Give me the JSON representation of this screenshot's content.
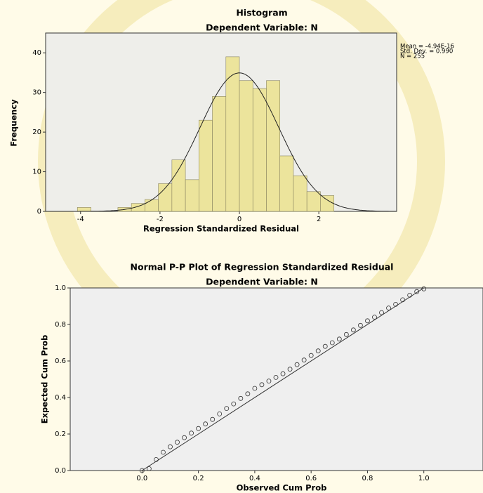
{
  "chart_data": [
    {
      "type": "histogram",
      "title": "Histogram",
      "subtitle": "Dependent Variable: N",
      "x_label": "Regression Standardized Residual",
      "y_label": "Frequency",
      "bins": [
        -4.08,
        -3.74,
        -3.4,
        -3.06,
        -2.72,
        -2.38,
        -2.04,
        -1.7,
        -1.36,
        -1.02,
        -0.68,
        -0.34,
        0,
        0.34,
        0.68,
        1.02,
        1.36,
        1.7,
        2.04,
        2.38
      ],
      "values": [
        1,
        0,
        0,
        1,
        2,
        3,
        7,
        13,
        8,
        23,
        29,
        39,
        33,
        31,
        33,
        14,
        9,
        5,
        4
      ],
      "color": "#ece49c",
      "xlim": [
        -4.88,
        3.96
      ],
      "xticks": [
        -4,
        -2,
        0,
        2
      ],
      "ylim": [
        0,
        45
      ],
      "yticks": [
        0,
        10,
        20,
        30,
        40
      ],
      "stats": {
        "mean": {
          "value": -4.94e-16,
          "label": "Mean = -4.94E-16"
        },
        "std_dev": {
          "value": 0.99,
          "label": "Std. Dev. = 0.990"
        },
        "n": {
          "value": 255,
          "label": "N = 255"
        }
      }
    },
    {
      "type": "scatter",
      "title": "Normal P-P Plot of Regression Standardized Residual",
      "subtitle": "Dependent Variable: N",
      "x_label": "Observed Cum Prob",
      "y_label": "Expected Cum Prob",
      "x": [
        0,
        0.025,
        0.05,
        0.075,
        0.1,
        0.125,
        0.15,
        0.175,
        0.2,
        0.225,
        0.25,
        0.275,
        0.3,
        0.325,
        0.35,
        0.375,
        0.4,
        0.425,
        0.45,
        0.475,
        0.5,
        0.525,
        0.55,
        0.575,
        0.6,
        0.625,
        0.65,
        0.675,
        0.7,
        0.725,
        0.75,
        0.775,
        0.8,
        0.825,
        0.85,
        0.875,
        0.9,
        0.925,
        0.95,
        0.975,
        1.0
      ],
      "values": [
        0,
        0.01,
        0.06,
        0.1,
        0.13,
        0.155,
        0.18,
        0.205,
        0.23,
        0.255,
        0.28,
        0.31,
        0.34,
        0.365,
        0.395,
        0.42,
        0.45,
        0.47,
        0.49,
        0.51,
        0.53,
        0.555,
        0.58,
        0.605,
        0.63,
        0.655,
        0.68,
        0.7,
        0.72,
        0.745,
        0.77,
        0.795,
        0.82,
        0.84,
        0.865,
        0.89,
        0.91,
        0.935,
        0.96,
        0.98,
        0.995
      ],
      "reference_line": {
        "x": [
          0,
          1
        ],
        "y": [
          0,
          1
        ]
      },
      "xlim": [
        -0.255,
        1.21
      ],
      "xticks": [
        {
          "value": 0,
          "label": "0.0"
        },
        0.2,
        0.4,
        0.6,
        0.8,
        {
          "value": 1,
          "label": "1.0"
        }
      ],
      "ylim": [
        0,
        1
      ],
      "yticks": [
        {
          "value": 0,
          "label": "0.0"
        },
        0.2,
        0.4,
        0.6,
        0.8,
        {
          "value": 1,
          "label": "1.0"
        }
      ]
    }
  ]
}
